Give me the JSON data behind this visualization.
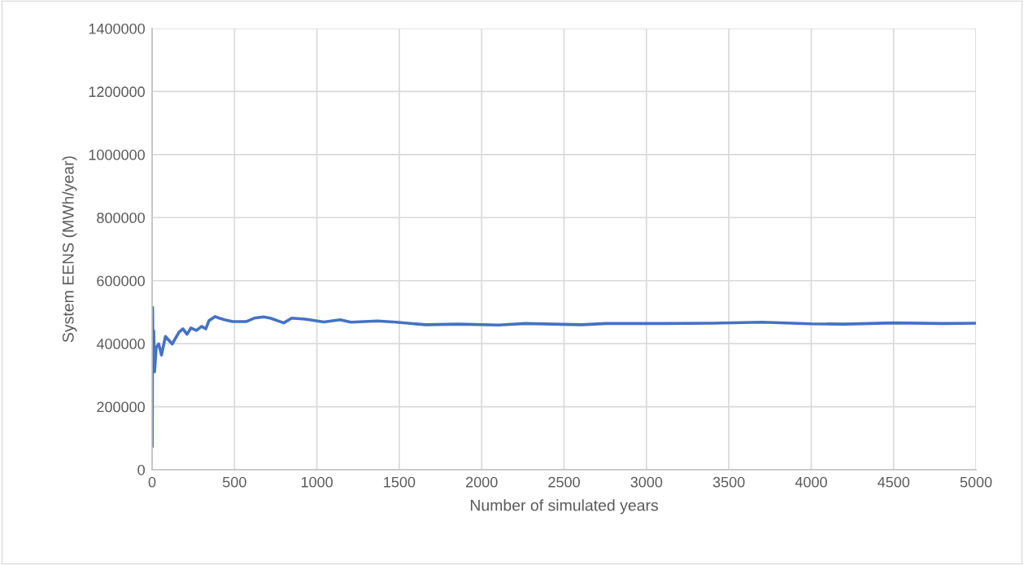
{
  "chart_data": {
    "type": "line",
    "xlabel": "Number of simulated years",
    "ylabel": "System EENS (MWh/year)",
    "x": [
      1,
      3,
      6,
      10,
      15,
      25,
      40,
      57,
      81,
      122,
      163,
      187,
      212,
      236,
      269,
      301,
      326,
      345,
      383,
      407,
      440,
      489,
      570,
      619,
      676,
      717,
      799,
      847,
      929,
      1043,
      1141,
      1206,
      1369,
      1483,
      1662,
      1858,
      2102,
      2265,
      2607,
      2754,
      3096,
      3400,
      3700,
      4000,
      4200,
      4500,
      4800,
      5000
    ],
    "series": [
      {
        "color": "#4472c4",
        "values": [
          75000,
          515000,
          320000,
          440000,
          311000,
          388000,
          399000,
          364000,
          423000,
          399000,
          436000,
          447000,
          430000,
          450000,
          442000,
          455000,
          447000,
          473000,
          486000,
          481000,
          476000,
          470000,
          470000,
          481000,
          485000,
          481000,
          466000,
          481000,
          478000,
          469000,
          476000,
          468000,
          472000,
          468000,
          460000,
          462000,
          459000,
          464000,
          460000,
          464000,
          464000,
          465000,
          468000,
          463000,
          462000,
          466000,
          464000,
          465000
        ]
      }
    ],
    "xlim": [
      0,
      5000
    ],
    "xticks": [
      0,
      500,
      1000,
      1500,
      2000,
      2500,
      3000,
      3500,
      4000,
      4500,
      5000
    ],
    "ylim": [
      0,
      1400000
    ],
    "yticks": [
      0,
      200000,
      400000,
      600000,
      800000,
      1000000,
      1200000,
      1400000
    ],
    "grid": true,
    "line_style": "solid",
    "marker": "none"
  }
}
